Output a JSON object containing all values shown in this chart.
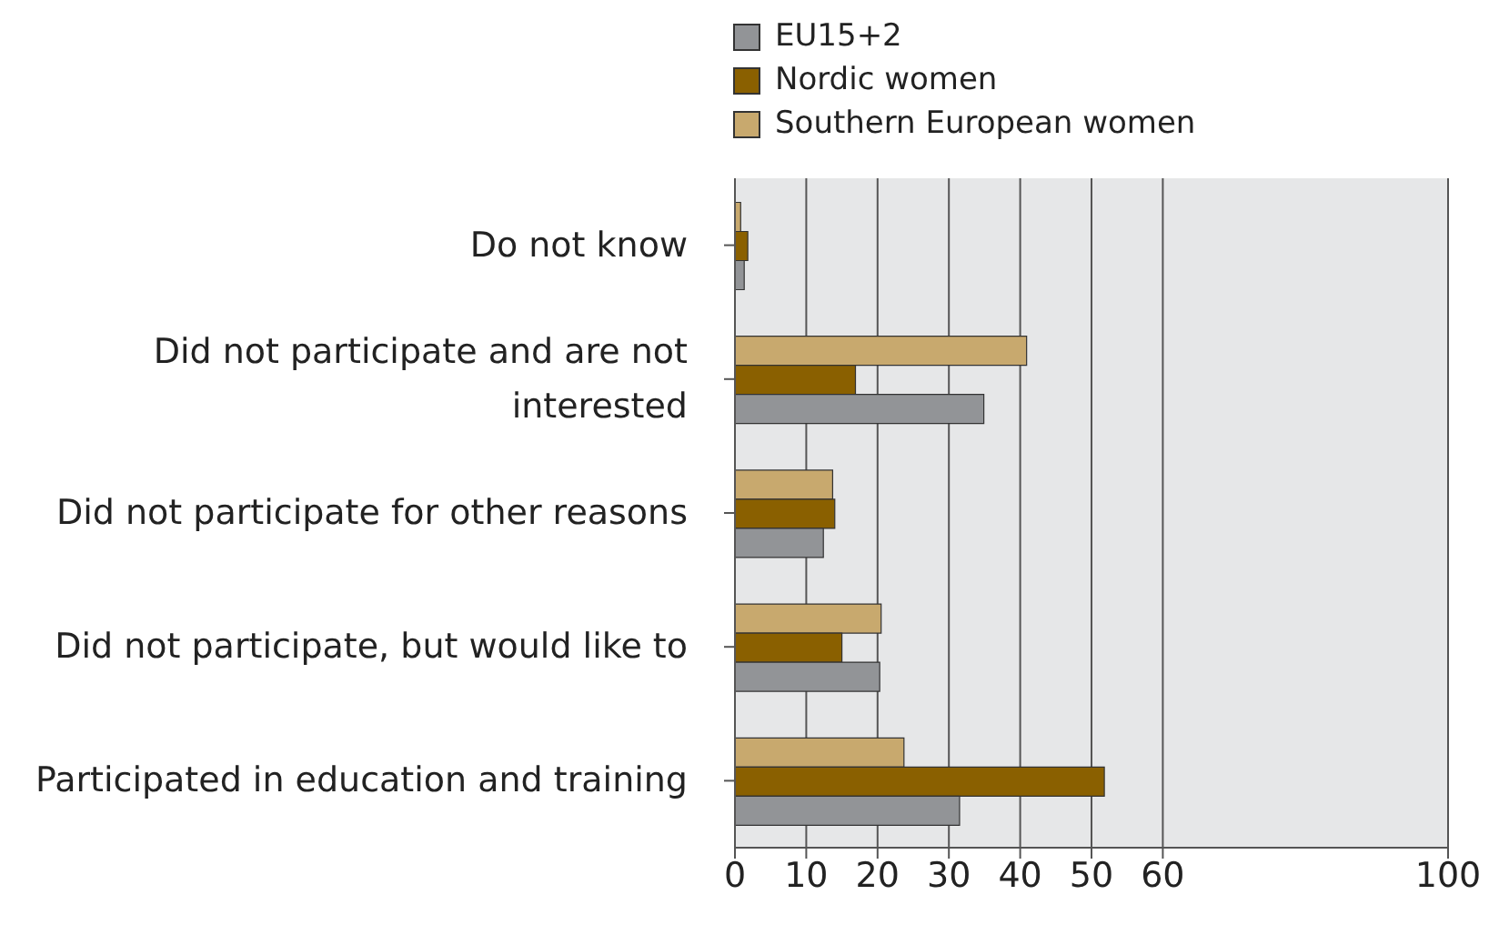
{
  "chart_data": {
    "type": "bar",
    "orientation": "horizontal",
    "categories": [
      "Do not know",
      "Did not participate and are not interested",
      "Did not participate for other reasons",
      "Did not participate, but would like to",
      "Participated in education and training"
    ],
    "series": [
      {
        "name": "EU15+2",
        "color": "#929497",
        "values": [
          1.3,
          34.9,
          12.4,
          20.3,
          31.5
        ]
      },
      {
        "name": "Nordic women",
        "color": "#8a6000",
        "values": [
          1.8,
          16.9,
          14,
          15,
          51.8
        ]
      },
      {
        "name": "Southern European women",
        "color": "#c8a96e",
        "values": [
          0.8,
          40.9,
          13.7,
          20.5,
          23.7
        ]
      }
    ],
    "xlim": [
      0,
      100
    ],
    "xticks": [
      0,
      10,
      20,
      30,
      40,
      50,
      60,
      100
    ],
    "grid": "x",
    "legend": "top"
  }
}
